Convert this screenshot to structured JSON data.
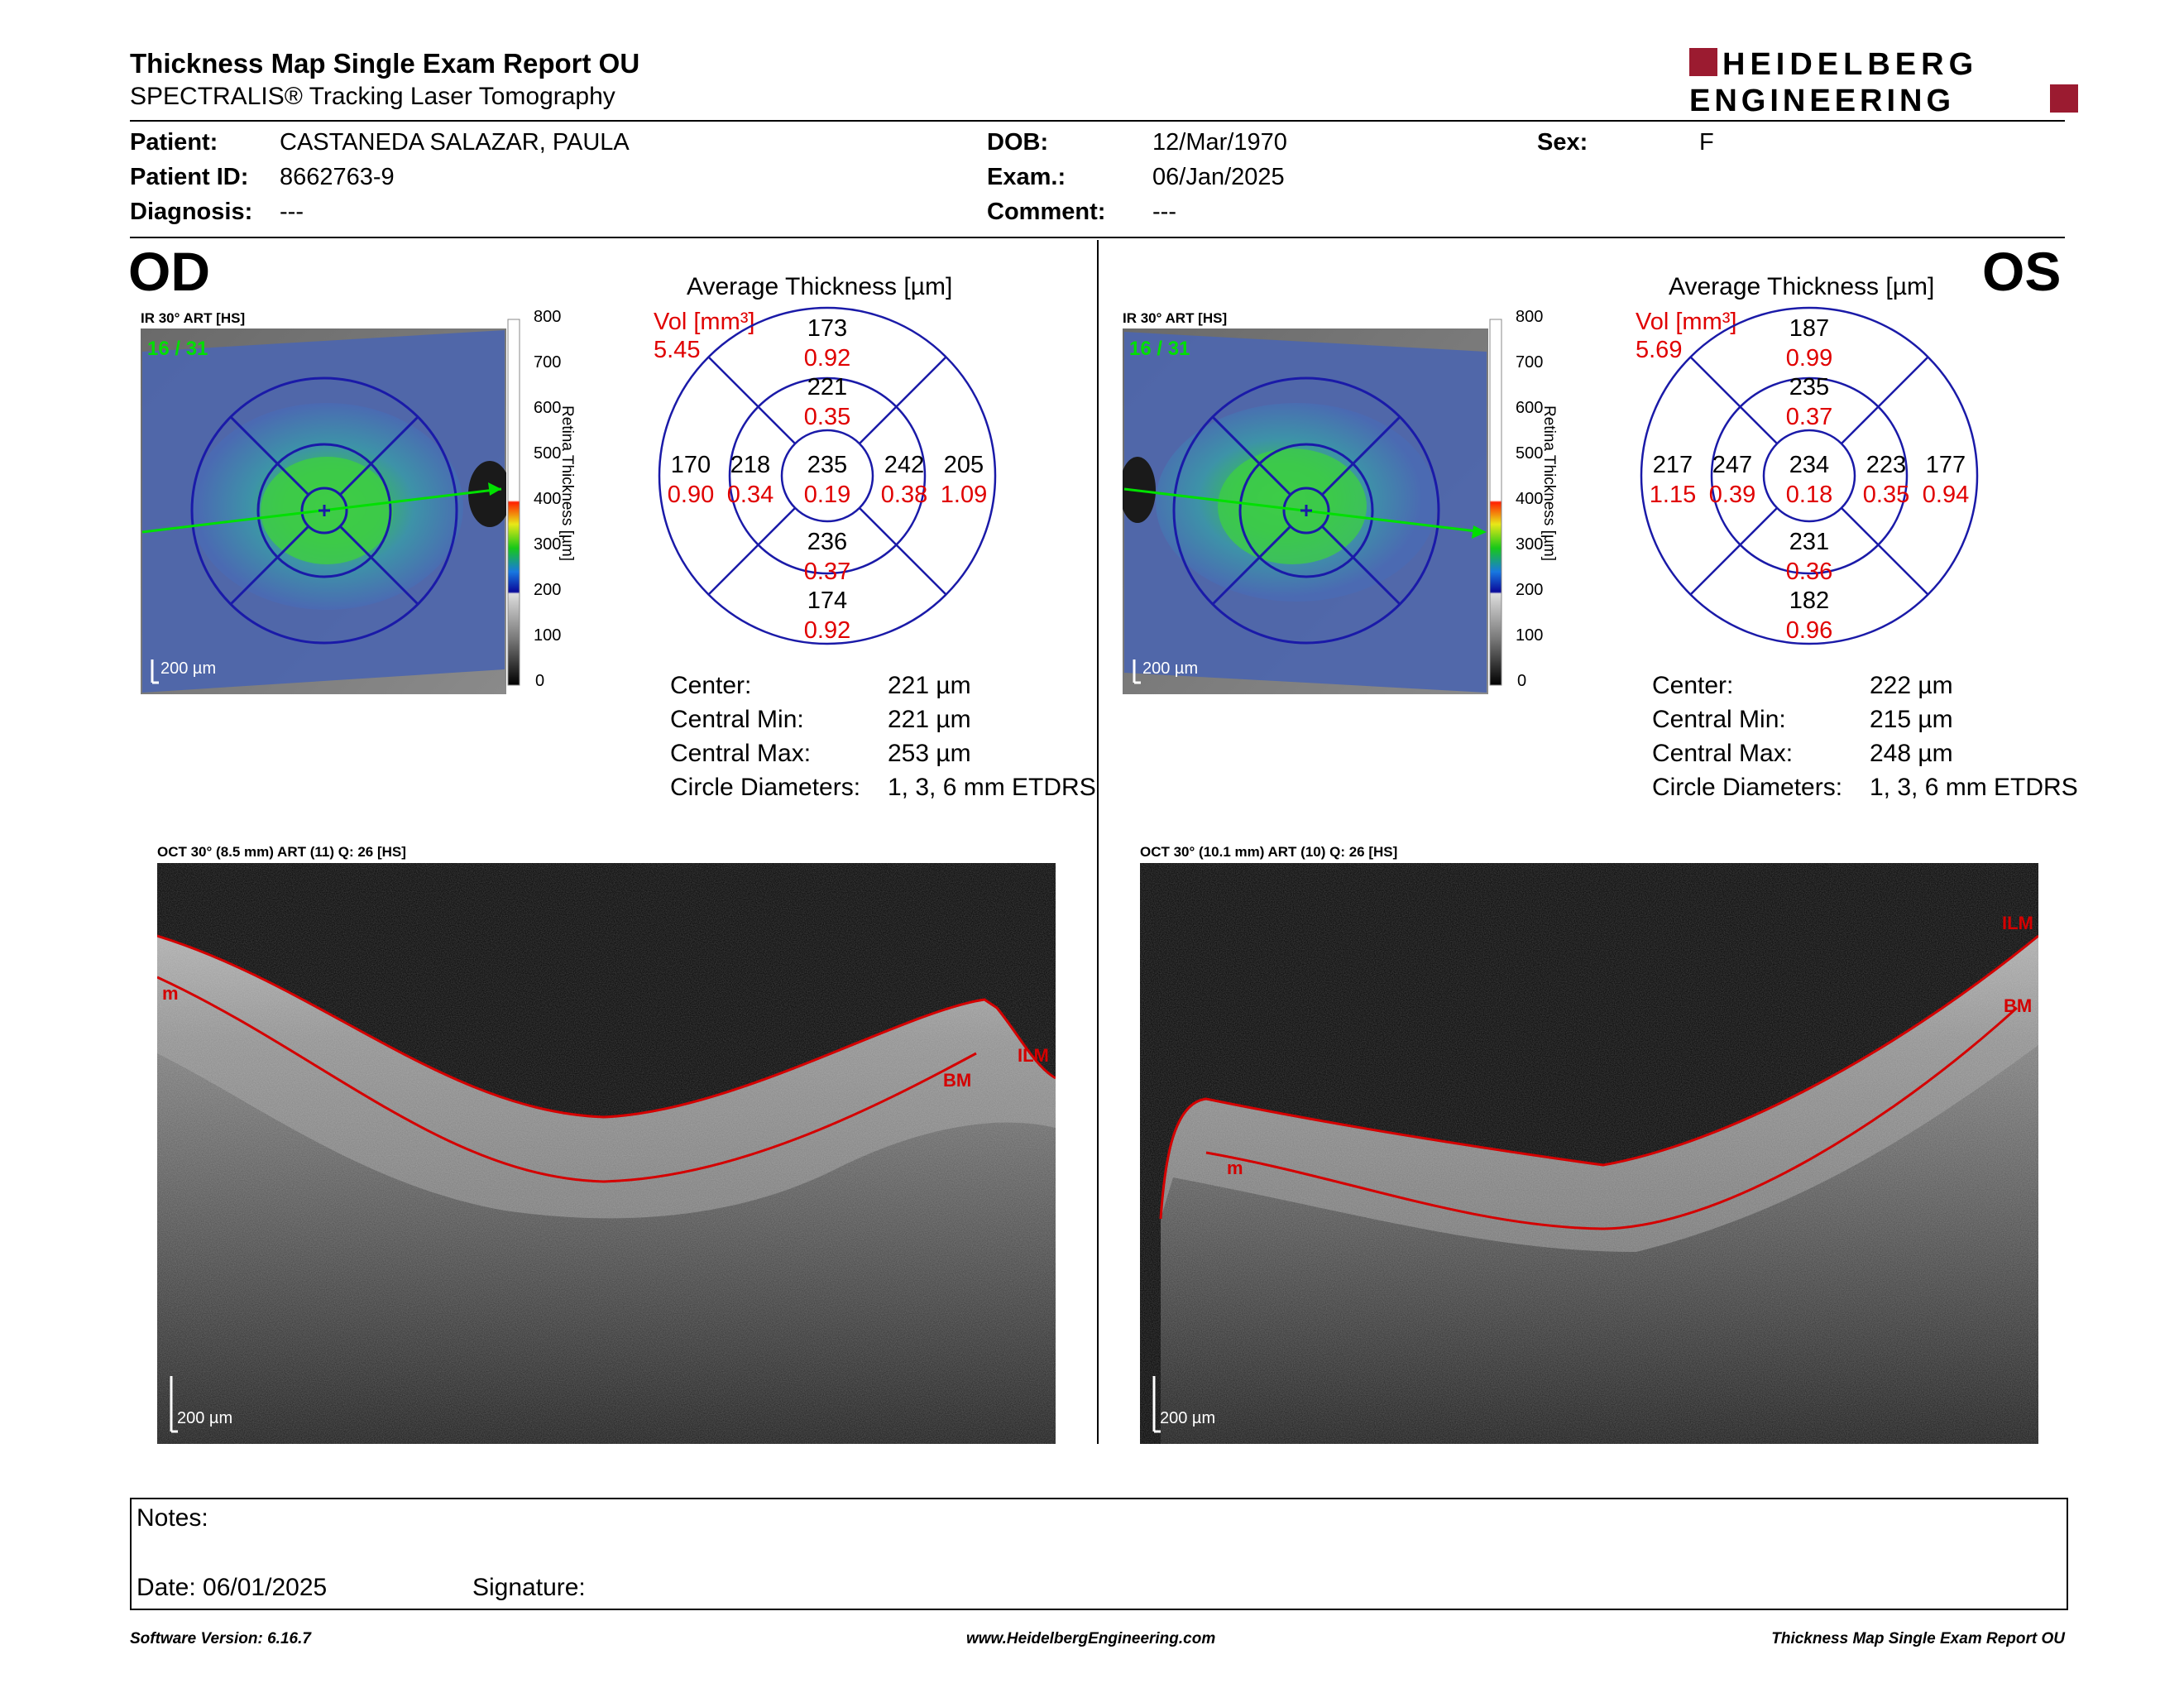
{
  "header": {
    "title": "Thickness Map Single Exam Report OU",
    "subtitle": "SPECTRALIS® Tracking Laser Tomography",
    "logo_line1": "HEIDELBERG",
    "logo_line2": "ENGINEERING"
  },
  "patient": {
    "patient_label": "Patient:",
    "patient_value": "CASTANEDA SALAZAR, PAULA",
    "id_label": "Patient ID:",
    "id_value": "8662763-9",
    "diag_label": "Diagnosis:",
    "diag_value": "---",
    "dob_label": "DOB:",
    "dob_value": "12/Mar/1970",
    "exam_label": "Exam.:",
    "exam_value": "06/Jan/2025",
    "comment_label": "Comment:",
    "comment_value": "---",
    "sex_label": "Sex:",
    "sex_value": "F"
  },
  "od": {
    "eye": "OD",
    "ir_label": "IR 30° ART [HS]",
    "frame": "16 / 31",
    "scale": "200 µm",
    "colorbar_label": "Retina Thickness [µm]",
    "colorbar_ticks": [
      "800",
      "700",
      "600",
      "500",
      "400",
      "300",
      "200",
      "100",
      "0"
    ],
    "avg_title": "Average Thickness [µm]",
    "vol_label": "Vol [mm³]",
    "vol_value": "5.45",
    "etdrs": {
      "center": [
        "235",
        "0.19"
      ],
      "sup_inner": [
        "221",
        "0.35"
      ],
      "sup_outer": [
        "173",
        "0.92"
      ],
      "inf_inner": [
        "236",
        "0.37"
      ],
      "inf_outer": [
        "174",
        "0.92"
      ],
      "left_inner": [
        "218",
        "0.34"
      ],
      "left_outer": [
        "170",
        "0.90"
      ],
      "right_inner": [
        "242",
        "0.38"
      ],
      "right_outer": [
        "205",
        "1.09"
      ]
    },
    "stats": {
      "center_label": "Center:",
      "center_value": "221 µm",
      "min_label": "Central Min:",
      "min_value": "221 µm",
      "max_label": "Central Max:",
      "max_value": "253 µm",
      "diam_label": "Circle Diameters:",
      "diam_value": "1, 3, 6 mm ETDRS"
    },
    "oct_label": "OCT 30° (8.5 mm) ART (11) Q: 26 [HS]",
    "oct_ilm": "ILM",
    "oct_bm": "BM",
    "oct_m": "m",
    "oct_scale": "200 µm"
  },
  "os": {
    "eye": "OS",
    "ir_label": "IR 30° ART [HS]",
    "frame": "16 / 31",
    "scale": "200 µm",
    "colorbar_label": "Retina Thickness [µm]",
    "colorbar_ticks": [
      "800",
      "700",
      "600",
      "500",
      "400",
      "300",
      "200",
      "100",
      "0"
    ],
    "avg_title": "Average Thickness [µm]",
    "vol_label": "Vol [mm³]",
    "vol_value": "5.69",
    "etdrs": {
      "center": [
        "234",
        "0.18"
      ],
      "sup_inner": [
        "235",
        "0.37"
      ],
      "sup_outer": [
        "187",
        "0.99"
      ],
      "inf_inner": [
        "231",
        "0.36"
      ],
      "inf_outer": [
        "182",
        "0.96"
      ],
      "left_inner": [
        "247",
        "0.39"
      ],
      "left_outer": [
        "217",
        "1.15"
      ],
      "right_inner": [
        "223",
        "0.35"
      ],
      "right_outer": [
        "177",
        "0.94"
      ]
    },
    "stats": {
      "center_label": "Center:",
      "center_value": "222 µm",
      "min_label": "Central Min:",
      "min_value": "215 µm",
      "max_label": "Central Max:",
      "max_value": "248 µm",
      "diam_label": "Circle Diameters:",
      "diam_value": "1, 3, 6 mm ETDRS"
    },
    "oct_label": "OCT 30° (10.1 mm) ART (10) Q: 26 [HS]",
    "oct_ilm": "ILM",
    "oct_bm": "BM",
    "oct_m": "m",
    "oct_scale": "200 µm"
  },
  "notes": {
    "notes_label": "Notes:",
    "date_label": "Date: 06/01/2025",
    "signature_label": "Signature:"
  },
  "footer": {
    "version": "Software Version: 6.16.7",
    "url": "www.HeidelbergEngineering.com",
    "report": "Thickness Map Single Exam Report OU"
  },
  "colors": {
    "brand": "#9b1b30",
    "etdrs_grid": "#1a1aa8",
    "volume_red": "#e00000",
    "frame_green": "#00e000",
    "segmentation_red": "#d40000"
  }
}
